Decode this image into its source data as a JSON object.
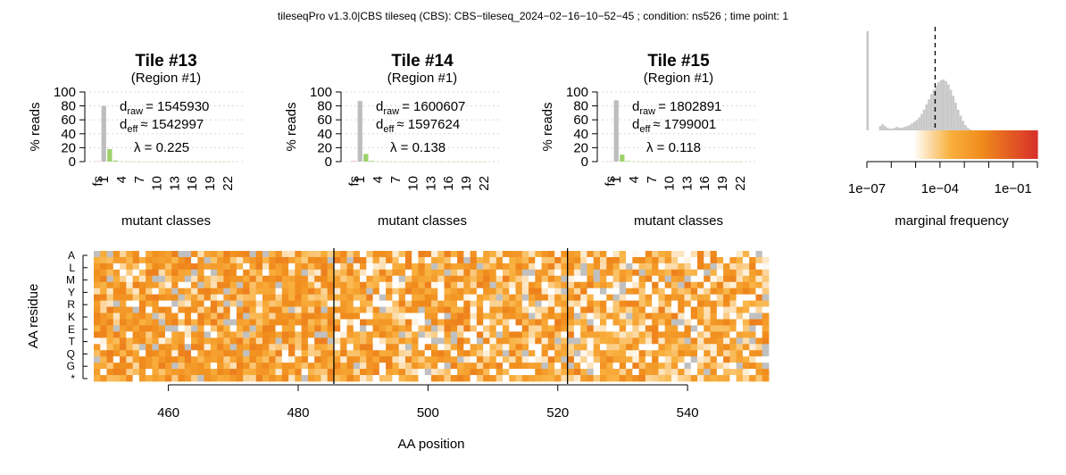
{
  "header": {
    "title": "tileseqPro v1.3.0|CBS tileseq (CBS): CBS−tileseq_2024−02−16−10−52−45 ; condition: ns526 ; time point: 1"
  },
  "colors": {
    "bar_fs": "#e8a0a8",
    "bar_1": "#bdbdbd",
    "bar_2": "#9cd06a",
    "hist": "#c8c8c8",
    "heat_light": "#fde8c8",
    "heat_mid": "#f9b03e",
    "heat_dark": "#f08c1c",
    "heat_red": "#d8322a",
    "missing": "#c0c0c0",
    "grid": "#d8d8d8"
  },
  "chart_data": [
    {
      "type": "bar",
      "title": "Tile #13",
      "subtitle": "(Region #1)",
      "ylabel": "% reads",
      "xlabel": "mutant classes",
      "ylim": [
        0,
        100
      ],
      "yticks": [
        "0",
        "20",
        "40",
        "60",
        "80",
        "100"
      ],
      "categories": [
        "fs",
        "1",
        "2",
        "3",
        "4",
        "5",
        "6",
        "7",
        "8",
        "9",
        "10",
        "11",
        "12",
        "13",
        "14",
        "15",
        "16",
        "17",
        "18",
        "19",
        "20",
        "21",
        "22"
      ],
      "tick_labels": [
        "fs",
        "1",
        "4",
        "7",
        "10",
        "13",
        "16",
        "19",
        "22"
      ],
      "values": [
        0.5,
        80,
        18,
        1.5,
        0.3,
        0.1,
        0,
        0,
        0,
        0,
        0,
        0,
        0,
        0,
        0,
        0,
        0,
        0,
        0,
        0,
        0,
        0,
        0
      ],
      "annotations": {
        "d_raw_label": "d",
        "d_raw_sub": "raw",
        "d_raw_value": "= 1545930",
        "d_eff_label": "d",
        "d_eff_sub": "eff",
        "d_eff_value": "≈ 1542997",
        "lambda_text": "λ = 0.225"
      }
    },
    {
      "type": "bar",
      "title": "Tile #14",
      "subtitle": "(Region #1)",
      "ylabel": "% reads",
      "xlabel": "mutant classes",
      "ylim": [
        0,
        100
      ],
      "yticks": [
        "0",
        "20",
        "40",
        "60",
        "80",
        "100"
      ],
      "categories": [
        "fs",
        "1",
        "2",
        "3",
        "4",
        "5",
        "6",
        "7",
        "8",
        "9",
        "10",
        "11",
        "12",
        "13",
        "14",
        "15",
        "16",
        "17",
        "18",
        "19",
        "20",
        "21",
        "22"
      ],
      "tick_labels": [
        "fs",
        "1",
        "4",
        "7",
        "10",
        "13",
        "16",
        "19",
        "22"
      ],
      "values": [
        0.8,
        87,
        11,
        1.0,
        0.2,
        0.1,
        0,
        0,
        0,
        0,
        0,
        0,
        0,
        0,
        0,
        0,
        0,
        0,
        0,
        0,
        0,
        0,
        0
      ],
      "annotations": {
        "d_raw_label": "d",
        "d_raw_sub": "raw",
        "d_raw_value": "= 1600607",
        "d_eff_label": "d",
        "d_eff_sub": "eff",
        "d_eff_value": "≈ 1597624",
        "lambda_text": "λ = 0.138"
      }
    },
    {
      "type": "bar",
      "title": "Tile #15",
      "subtitle": "(Region #1)",
      "ylabel": "% reads",
      "xlabel": "mutant classes",
      "ylim": [
        0,
        100
      ],
      "yticks": [
        "0",
        "20",
        "40",
        "60",
        "80",
        "100"
      ],
      "categories": [
        "fs",
        "1",
        "2",
        "3",
        "4",
        "5",
        "6",
        "7",
        "8",
        "9",
        "10",
        "11",
        "12",
        "13",
        "14",
        "15",
        "16",
        "17",
        "18",
        "19",
        "20",
        "21",
        "22"
      ],
      "tick_labels": [
        "fs",
        "1",
        "4",
        "7",
        "10",
        "13",
        "16",
        "19",
        "22"
      ],
      "values": [
        0.3,
        88,
        10,
        0.8,
        0.2,
        0,
        0,
        0,
        0,
        0,
        0,
        0,
        0,
        0,
        0,
        0,
        0,
        0,
        0,
        0,
        0,
        0,
        0
      ],
      "annotations": {
        "d_raw_label": "d",
        "d_raw_sub": "raw",
        "d_raw_value": "= 1802891",
        "d_eff_label": "d",
        "d_eff_sub": "eff",
        "d_eff_value": "≈ 1799001",
        "lambda_text": "λ = 0.118"
      }
    },
    {
      "type": "bar",
      "xlabel": "marginal frequency",
      "scale": "log10",
      "xlim": [
        1e-07,
        1
      ],
      "xticks": [
        {
          "v": -7,
          "label": "1e−07"
        },
        {
          "v": -4,
          "label": "1e−04"
        },
        {
          "v": -1,
          "label": "1e−01"
        }
      ],
      "threshold_log10": -4.2,
      "lowest_bin_log10": -7,
      "lowest_bin_value": 115,
      "bins_start_log10": -6.7,
      "bins_step_log10": 0.1,
      "values": [
        0,
        0,
        5,
        7,
        5,
        3,
        2,
        2,
        3,
        4,
        3,
        3,
        4,
        5,
        6,
        8,
        10,
        12,
        15,
        19,
        24,
        30,
        36,
        42,
        47,
        52,
        56,
        58,
        59,
        57,
        53,
        47,
        40,
        32,
        24,
        17,
        11,
        6,
        3,
        1
      ],
      "ymax": 120
    },
    {
      "type": "heatmap",
      "xlabel": "AA position",
      "ylabel": "AA residue",
      "xlim": [
        448.5,
        552.5
      ],
      "xticks": [
        460,
        480,
        500,
        520,
        540
      ],
      "row_labels": [
        "A",
        "L",
        "M",
        "Y",
        "R",
        "K",
        "E",
        "T",
        "Q",
        "G",
        "*"
      ],
      "n_rows": 21,
      "tile_boundaries": [
        485.5,
        521.5
      ],
      "tiles": [
        {
          "name": "Tile #13",
          "start": 449,
          "end": 485,
          "density": 0.82
        },
        {
          "name": "Tile #14",
          "start": 486,
          "end": 521,
          "density": 0.62
        },
        {
          "name": "Tile #15",
          "start": 522,
          "end": 552,
          "density": 0.52
        }
      ],
      "missing_fraction": 0.06,
      "seed": 7
    }
  ]
}
